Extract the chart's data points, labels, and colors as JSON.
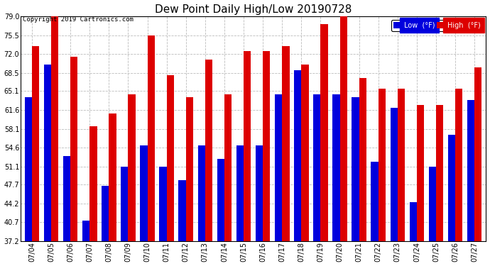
{
  "title": "Dew Point Daily High/Low 20190728",
  "copyright": "Copyright 2019 Cartronics.com",
  "dates": [
    "07/04",
    "07/05",
    "07/06",
    "07/07",
    "07/08",
    "07/09",
    "07/10",
    "07/11",
    "07/12",
    "07/13",
    "07/14",
    "07/15",
    "07/16",
    "07/17",
    "07/18",
    "07/19",
    "07/20",
    "07/21",
    "07/22",
    "07/23",
    "07/24",
    "07/25",
    "07/26",
    "07/27"
  ],
  "high": [
    73.5,
    79.0,
    71.5,
    58.5,
    61.0,
    64.5,
    75.5,
    68.0,
    64.0,
    71.0,
    64.5,
    72.5,
    72.5,
    73.5,
    70.0,
    77.5,
    79.5,
    67.5,
    65.5,
    65.5,
    62.5,
    62.5,
    65.5,
    69.5
  ],
  "low": [
    64.0,
    70.0,
    53.0,
    41.0,
    47.5,
    51.0,
    55.0,
    51.0,
    48.5,
    55.0,
    52.5,
    55.0,
    55.0,
    64.5,
    69.0,
    64.5,
    64.5,
    64.0,
    52.0,
    62.0,
    44.5,
    51.0,
    57.0,
    63.5
  ],
  "ylim": [
    37.2,
    79.0
  ],
  "yticks": [
    37.2,
    40.7,
    44.2,
    47.7,
    51.1,
    54.6,
    58.1,
    61.6,
    65.1,
    68.5,
    72.0,
    75.5,
    79.0
  ],
  "bar_width": 0.38,
  "low_color": "#0000dd",
  "high_color": "#dd0000",
  "bg_color": "#ffffff",
  "grid_color": "#bbbbbb",
  "title_fontsize": 11,
  "tick_fontsize": 7,
  "legend_low_label": "Low  (°F)",
  "legend_high_label": "High  (°F)"
}
